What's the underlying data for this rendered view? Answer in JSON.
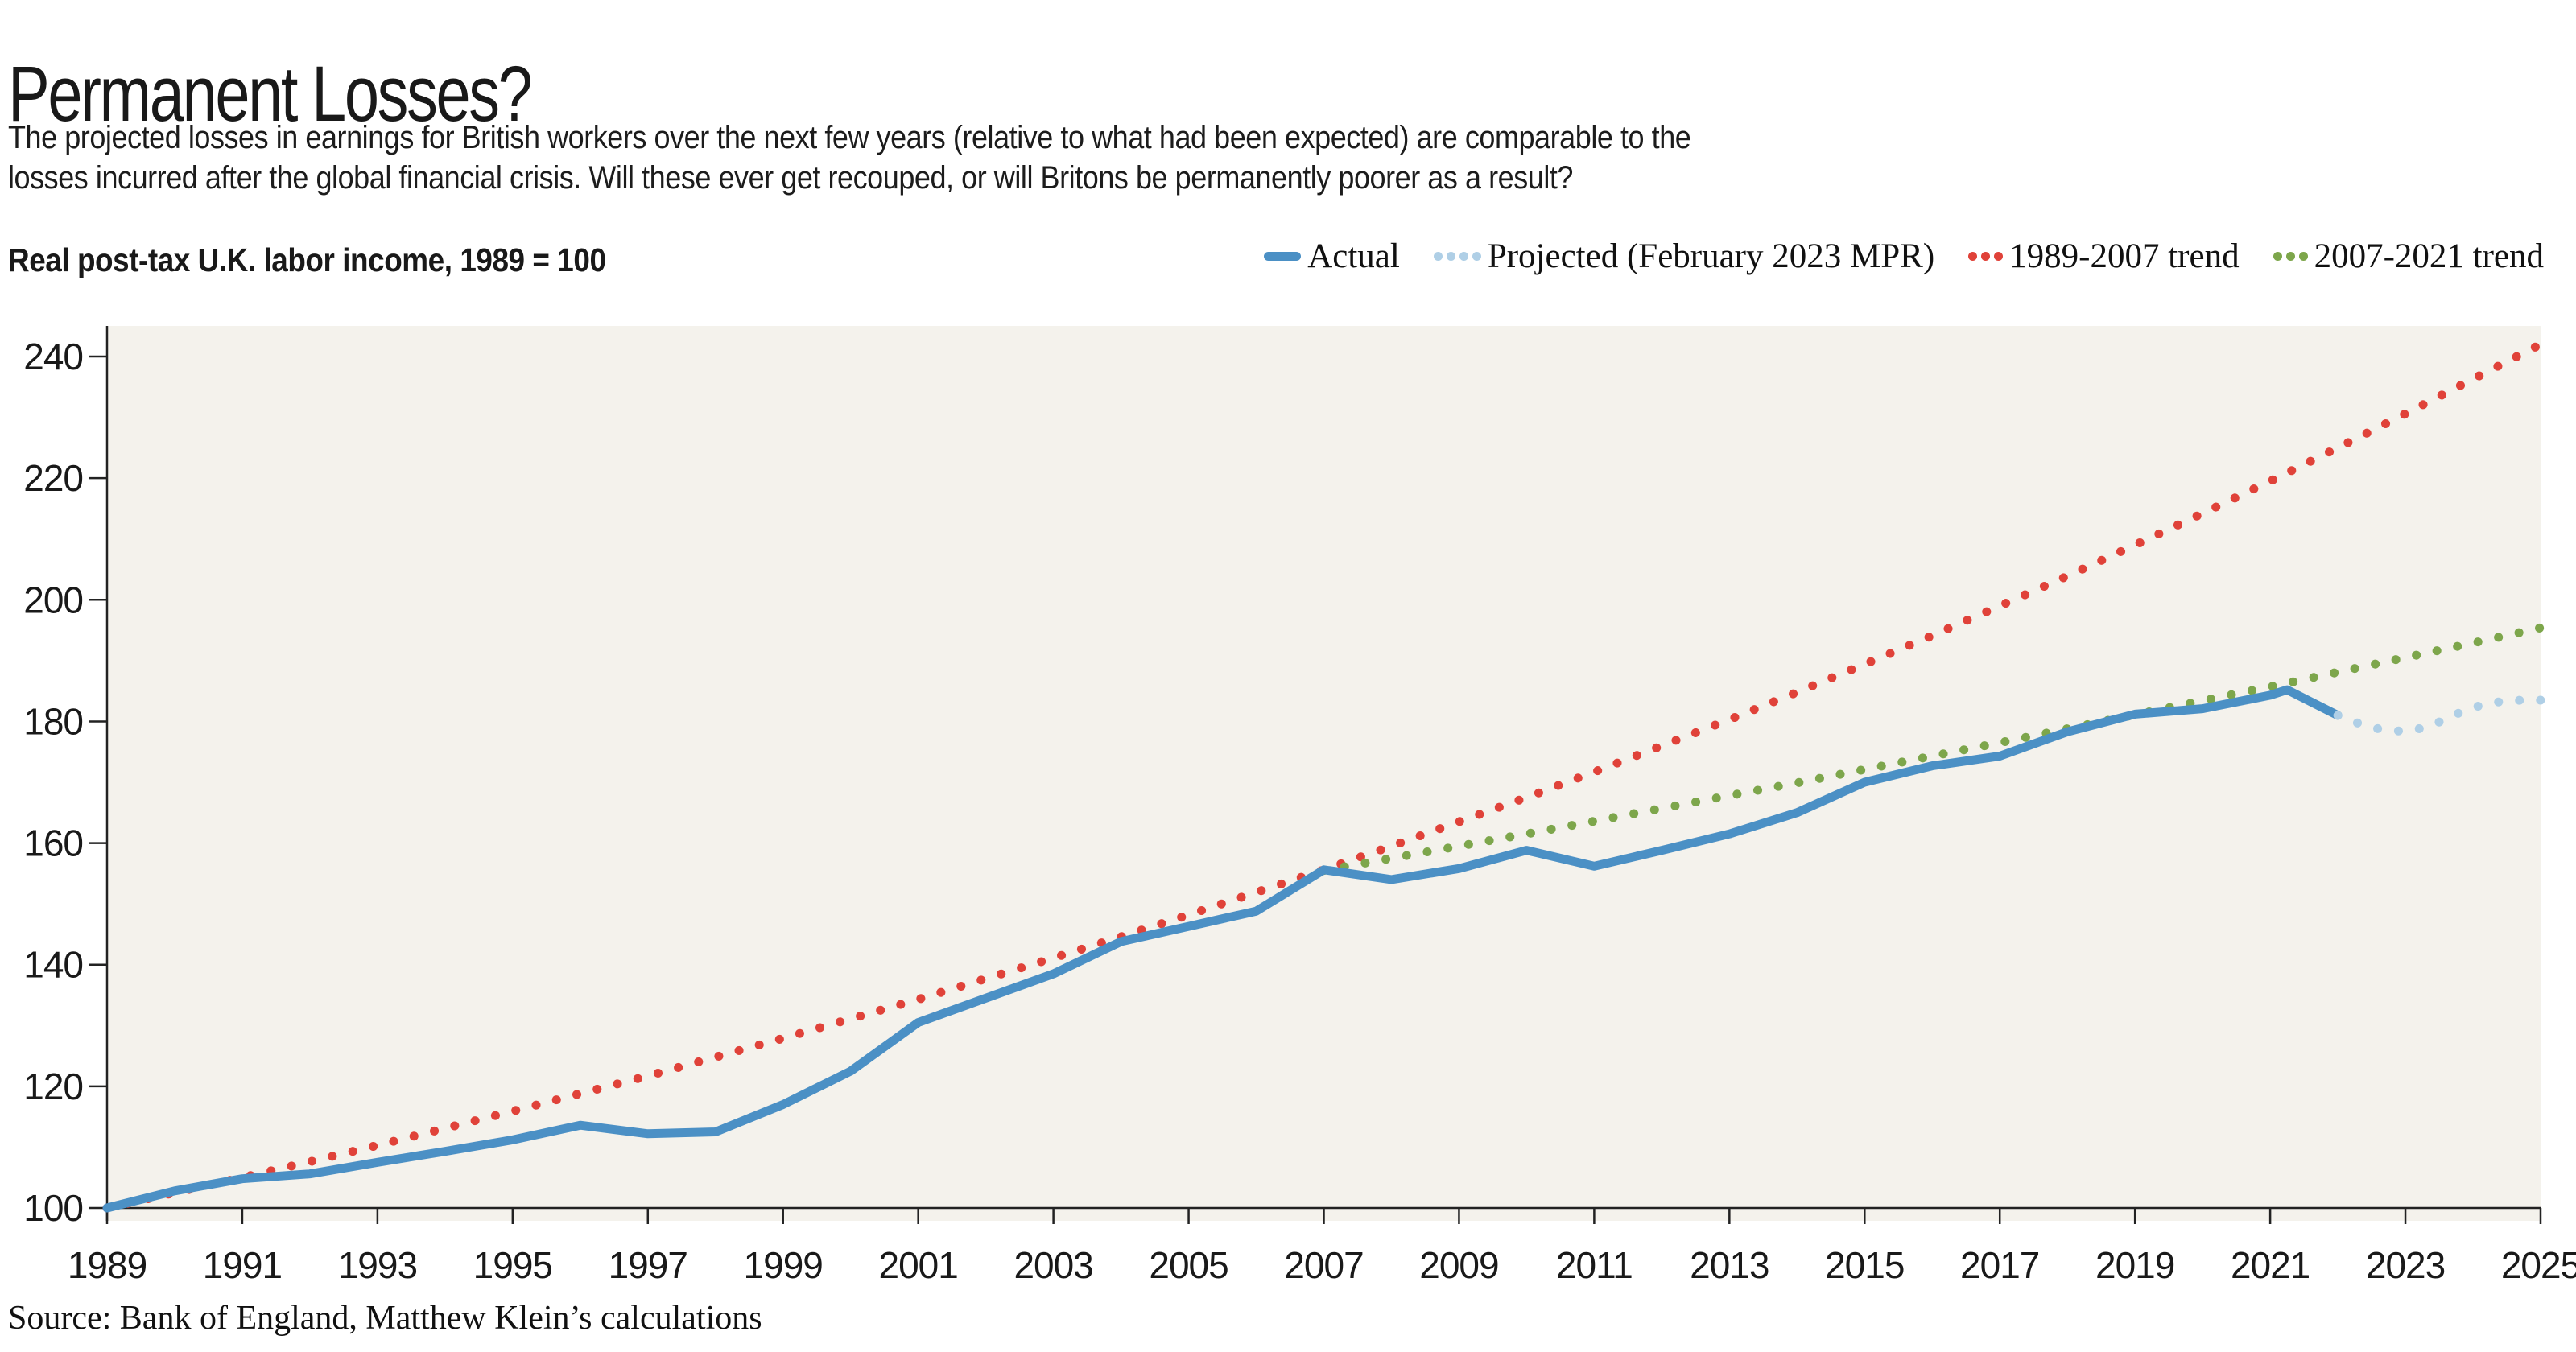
{
  "header": {
    "title": "Permanent Losses?",
    "subtitle_line1": "The projected losses in earnings for British workers over the next few years (relative to what had been expected) are comparable to the",
    "subtitle_line2": "losses incurred after the global financial crisis. Will these ever get recouped, or will Britons be permanently poorer as a result?"
  },
  "panel_label": "Real post-tax U.K. labor income, 1989 = 100",
  "legend": {
    "items": [
      {
        "label": "Actual",
        "color": "#4b90c5",
        "swatch": "solid-dash"
      },
      {
        "label": "Projected (February 2023 MPR)",
        "color": "#afcfe6",
        "swatch": "dots"
      },
      {
        "label": "1989-2007 trend",
        "color": "#e04239",
        "swatch": "dots"
      },
      {
        "label": "2007-2021 trend",
        "color": "#7da64b",
        "swatch": "dots"
      }
    ]
  },
  "source": "Source: Bank of England, Matthew Klein’s calculations",
  "colors": {
    "page_background": "#ffffff",
    "plot_background": "#f4f2ec",
    "axis": "#222222",
    "text": "#191919",
    "actual": "#4b90c5",
    "projected": "#afcfe6",
    "trend_red": "#e04239",
    "trend_green": "#7da64b"
  },
  "chart_data": {
    "type": "line",
    "title": "Real post-tax U.K. labor income, 1989 = 100",
    "xlabel": "",
    "ylabel": "",
    "xlim": [
      1989,
      2025
    ],
    "ylim": [
      98,
      245
    ],
    "grid": false,
    "legend_position": "top-right",
    "x_ticks": [
      1989,
      1991,
      1993,
      1995,
      1997,
      1999,
      2001,
      2003,
      2005,
      2007,
      2009,
      2011,
      2013,
      2015,
      2017,
      2019,
      2021,
      2023,
      2025
    ],
    "y_ticks": [
      100,
      120,
      140,
      160,
      180,
      200,
      220,
      240
    ],
    "series": [
      {
        "name": "1989-2007 trend",
        "style": "dotted",
        "color_key": "trend_red",
        "note": "exponential trend ~2.5%/yr fit to 1989-2007, extended to 2025",
        "points": [
          [
            1989,
            100.0
          ],
          [
            1990,
            102.5
          ],
          [
            1991,
            105.0
          ],
          [
            1992,
            107.6
          ],
          [
            1993,
            110.3
          ],
          [
            1994,
            113.1
          ],
          [
            1995,
            115.9
          ],
          [
            1996,
            118.8
          ],
          [
            1997,
            121.7
          ],
          [
            1998,
            124.8
          ],
          [
            1999,
            127.9
          ],
          [
            2000,
            131.1
          ],
          [
            2001,
            134.3
          ],
          [
            2002,
            137.7
          ],
          [
            2003,
            141.1
          ],
          [
            2004,
            144.6
          ],
          [
            2005,
            148.2
          ],
          [
            2006,
            151.9
          ],
          [
            2007,
            155.6
          ],
          [
            2008,
            159.5
          ],
          [
            2009,
            163.5
          ],
          [
            2010,
            167.5
          ],
          [
            2011,
            171.7
          ],
          [
            2012,
            176.0
          ],
          [
            2013,
            180.3
          ],
          [
            2014,
            184.8
          ],
          [
            2015,
            189.4
          ],
          [
            2016,
            194.1
          ],
          [
            2017,
            199.0
          ],
          [
            2018,
            203.9
          ],
          [
            2019,
            209.0
          ],
          [
            2020,
            214.2
          ],
          [
            2021,
            219.5
          ],
          [
            2022,
            225.0
          ],
          [
            2023,
            230.6
          ],
          [
            2024,
            236.3
          ],
          [
            2025,
            242.0
          ]
        ]
      },
      {
        "name": "2007-2021 trend",
        "style": "dotted",
        "color_key": "trend_green",
        "note": "exponential trend ~1.3%/yr fit to 2007-2021, extended to 2025",
        "points": [
          [
            2007,
            155.5
          ],
          [
            2008,
            157.5
          ],
          [
            2009,
            159.5
          ],
          [
            2010,
            161.5
          ],
          [
            2011,
            163.6
          ],
          [
            2012,
            165.7
          ],
          [
            2013,
            167.8
          ],
          [
            2014,
            169.9
          ],
          [
            2015,
            172.1
          ],
          [
            2016,
            174.3
          ],
          [
            2017,
            176.5
          ],
          [
            2018,
            178.8
          ],
          [
            2019,
            181.1
          ],
          [
            2020,
            183.4
          ],
          [
            2021,
            185.7
          ],
          [
            2022,
            188.1
          ],
          [
            2023,
            190.5
          ],
          [
            2024,
            192.9
          ],
          [
            2025,
            195.4
          ]
        ]
      },
      {
        "name": "Actual",
        "style": "solid",
        "color_key": "actual",
        "points": [
          [
            1989,
            100.0
          ],
          [
            1990,
            102.8
          ],
          [
            1991,
            104.8
          ],
          [
            1992,
            105.6
          ],
          [
            1993,
            107.5
          ],
          [
            1994,
            109.3
          ],
          [
            1995,
            111.2
          ],
          [
            1996,
            113.6
          ],
          [
            1997,
            112.2
          ],
          [
            1998,
            112.5
          ],
          [
            1999,
            117.0
          ],
          [
            2000,
            122.5
          ],
          [
            2001,
            130.5
          ],
          [
            2002,
            134.5
          ],
          [
            2003,
            138.5
          ],
          [
            2004,
            143.8
          ],
          [
            2005,
            146.3
          ],
          [
            2006,
            148.8
          ],
          [
            2007,
            155.6
          ],
          [
            2008,
            154.0
          ],
          [
            2009,
            155.8
          ],
          [
            2010,
            158.8
          ],
          [
            2011,
            156.2
          ],
          [
            2012,
            158.8
          ],
          [
            2013,
            161.5
          ],
          [
            2014,
            165.0
          ],
          [
            2015,
            170.0
          ],
          [
            2016,
            172.7
          ],
          [
            2017,
            174.3
          ],
          [
            2018,
            178.3
          ],
          [
            2019,
            181.2
          ],
          [
            2020,
            182.1
          ],
          [
            2021,
            184.3
          ],
          [
            2021.25,
            185.2
          ],
          [
            2022,
            181.0
          ]
        ]
      },
      {
        "name": "Projected (February 2023 MPR)",
        "style": "dotted",
        "color_key": "projected",
        "points": [
          [
            2022,
            181.0
          ],
          [
            2022.25,
            179.9
          ],
          [
            2022.5,
            179.0
          ],
          [
            2022.75,
            178.5
          ],
          [
            2023,
            178.4
          ],
          [
            2023.25,
            178.9
          ],
          [
            2023.5,
            179.9
          ],
          [
            2023.75,
            181.2
          ],
          [
            2024,
            182.3
          ],
          [
            2024.25,
            183.0
          ],
          [
            2024.5,
            183.4
          ],
          [
            2024.75,
            183.5
          ],
          [
            2025,
            183.5
          ]
        ]
      }
    ]
  }
}
